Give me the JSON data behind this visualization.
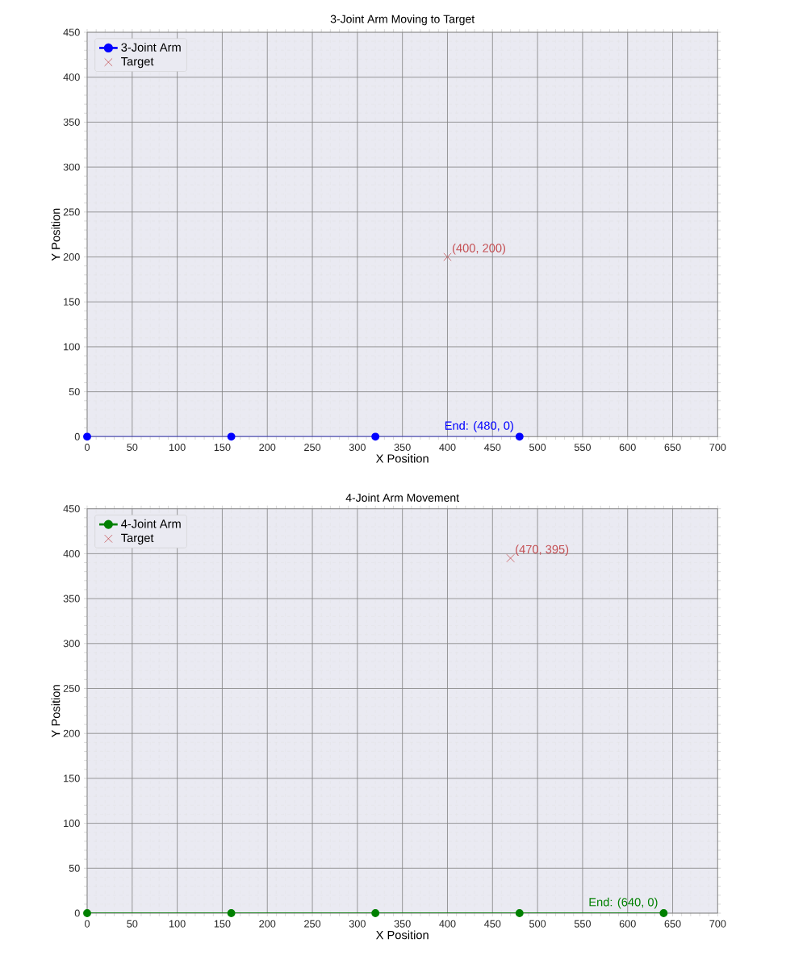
{
  "chart_data": [
    {
      "type": "line",
      "title": "3-Joint Arm Moving to Target",
      "xlabel": "X Position",
      "ylabel": "Y Position",
      "xlim": [
        0,
        700
      ],
      "ylim": [
        0,
        450
      ],
      "xticks": [
        0,
        50,
        100,
        150,
        200,
        250,
        300,
        350,
        400,
        450,
        500,
        550,
        600,
        650,
        700
      ],
      "yticks": [
        0,
        50,
        100,
        150,
        200,
        250,
        300,
        350,
        400,
        450
      ],
      "grid": true,
      "legend": "top left",
      "series": [
        {
          "name": "3-Joint Arm",
          "marker": "circle",
          "color": "#0000ff",
          "x": [
            0,
            160,
            320,
            480
          ],
          "values": [
            0,
            0,
            0,
            0
          ]
        },
        {
          "name": "Target",
          "type": "scatter",
          "marker": "cross",
          "color": "#c44e52",
          "x": [
            400
          ],
          "values": [
            200
          ]
        }
      ],
      "annotations": [
        {
          "text": "(400, 200)",
          "x": 400,
          "y": 200
        },
        {
          "text": "End: (480, 0)",
          "x": 480,
          "y": 0
        }
      ]
    },
    {
      "type": "line",
      "title": "4-Joint Arm Movement",
      "xlabel": "X Position",
      "ylabel": "Y Position",
      "xlim": [
        0,
        700
      ],
      "ylim": [
        0,
        450
      ],
      "xticks": [
        0,
        50,
        100,
        150,
        200,
        250,
        300,
        350,
        400,
        450,
        500,
        550,
        600,
        650,
        700
      ],
      "yticks": [
        0,
        50,
        100,
        150,
        200,
        250,
        300,
        350,
        400,
        450
      ],
      "grid": true,
      "legend": "top left",
      "series": [
        {
          "name": "4-Joint Arm",
          "marker": "circle",
          "color": "#008000",
          "x": [
            0,
            160,
            320,
            480,
            640
          ],
          "values": [
            0,
            0,
            0,
            0,
            0
          ]
        },
        {
          "name": "Target",
          "type": "scatter",
          "marker": "cross",
          "color": "#c44e52",
          "x": [
            470
          ],
          "values": [
            395
          ]
        }
      ],
      "annotations": [
        {
          "text": "(470, 395)",
          "x": 470,
          "y": 395
        },
        {
          "text": "End: (640, 0)",
          "x": 640,
          "y": 0
        }
      ]
    }
  ]
}
